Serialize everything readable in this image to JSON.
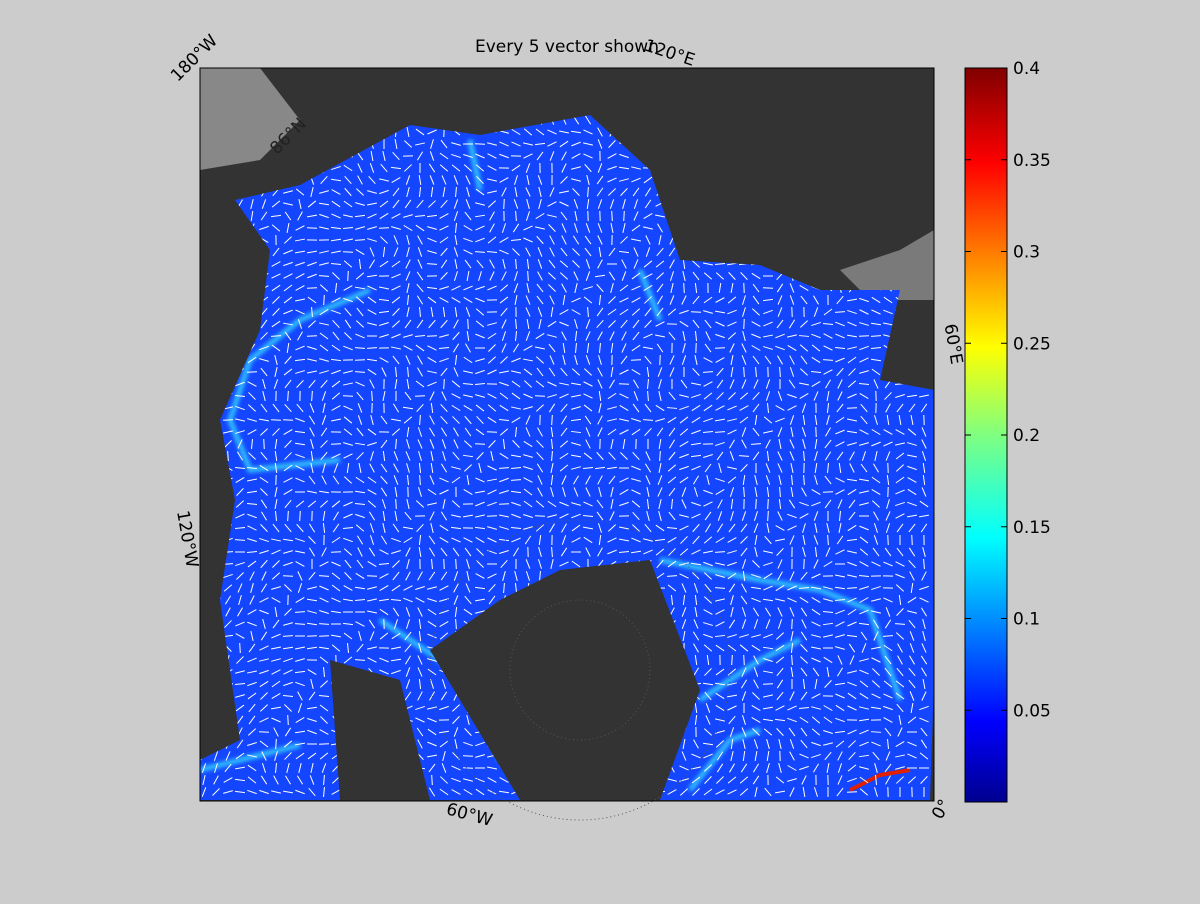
{
  "title": "Every 5 vector shown",
  "map_labels": {
    "lon_180w": "180°W",
    "lon_120e": "120°E",
    "lon_60e": "60°E",
    "lon_0": "0°",
    "lon_60w": "60°W",
    "lon_120w": "120°W",
    "lat_86n": "86°N"
  },
  "colorbar": {
    "ylim": [
      0,
      0.4
    ],
    "yticks": [
      0.05,
      0.1,
      0.15,
      0.2,
      0.25,
      0.3,
      0.35,
      0.4
    ]
  }
}
